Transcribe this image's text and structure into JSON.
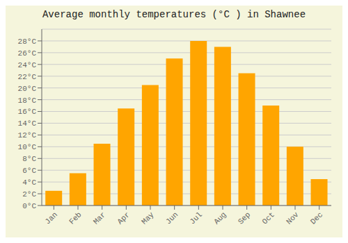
{
  "chart_data": {
    "type": "bar",
    "title": "Average monthly temperatures (°C ) in Shawnee",
    "categories": [
      "Jan",
      "Feb",
      "Mar",
      "Apr",
      "May",
      "Jun",
      "Jul",
      "Aug",
      "Sep",
      "Oct",
      "Nov",
      "Dec"
    ],
    "values": [
      2.5,
      5.5,
      10.5,
      16.5,
      20.5,
      25.0,
      28.0,
      27.0,
      22.5,
      17.0,
      10.0,
      4.5
    ],
    "color": "#FFA500",
    "ylim": [
      0,
      30
    ],
    "yticks": [
      {
        "value": 0,
        "label": "0°C"
      },
      {
        "value": 2,
        "label": "2°C"
      },
      {
        "value": 4,
        "label": "4°C"
      },
      {
        "value": 6,
        "label": "6°C"
      },
      {
        "value": 8,
        "label": "8°C"
      },
      {
        "value": 10,
        "label": "10°C"
      },
      {
        "value": 12,
        "label": "12°C"
      },
      {
        "value": 14,
        "label": "14°C"
      },
      {
        "value": 16,
        "label": "16°C"
      },
      {
        "value": 18,
        "label": "18°C"
      },
      {
        "value": 20,
        "label": "20°C"
      },
      {
        "value": 22,
        "label": "22°C"
      },
      {
        "value": 24,
        "label": "24°C"
      },
      {
        "value": 26,
        "label": "26°C"
      },
      {
        "value": 28,
        "label": "28°C"
      }
    ],
    "grid": true
  }
}
